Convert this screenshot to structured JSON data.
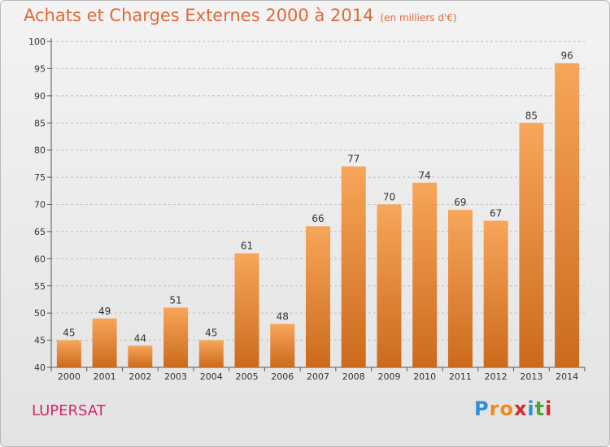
{
  "title": {
    "main": "Achats et Charges Externes 2000 à 2014",
    "unit": "(en milliers d'€)"
  },
  "commune": "LUPERSAT",
  "logo": {
    "text": "Proxiti",
    "letters": [
      {
        "ch": "P",
        "color": "#2f8fd8"
      },
      {
        "ch": "r",
        "color": "#f08a1c"
      },
      {
        "ch": "o",
        "color": "#f08a1c"
      },
      {
        "ch": "x",
        "color": "#d42a2a"
      },
      {
        "ch": "i",
        "color": "#2f8fd8"
      },
      {
        "ch": "t",
        "color": "#4aa53a"
      },
      {
        "ch": "i",
        "color": "#d42a2a"
      }
    ]
  },
  "colors": {
    "bar_top": "#f7a65a",
    "bar_bottom": "#cc6a1c",
    "title": "#e0693a",
    "commune": "#d4286d",
    "grid": "#bdbdbd"
  },
  "chart_data": {
    "type": "bar",
    "title": "Achats et Charges Externes 2000 à 2014",
    "subtitle": "(en milliers d'€)",
    "xlabel": "",
    "ylabel": "",
    "categories": [
      "2000",
      "2001",
      "2002",
      "2003",
      "2004",
      "2005",
      "2006",
      "2007",
      "2008",
      "2009",
      "2010",
      "2011",
      "2012",
      "2013",
      "2014"
    ],
    "values": [
      45,
      49,
      44,
      51,
      45,
      61,
      48,
      66,
      77,
      70,
      74,
      69,
      67,
      85,
      96
    ],
    "ylim": [
      40,
      100
    ],
    "yticks": [
      40,
      45,
      50,
      55,
      60,
      65,
      70,
      75,
      80,
      85,
      90,
      95,
      100
    ],
    "grid": "horizontal dashed",
    "legend": "none"
  }
}
